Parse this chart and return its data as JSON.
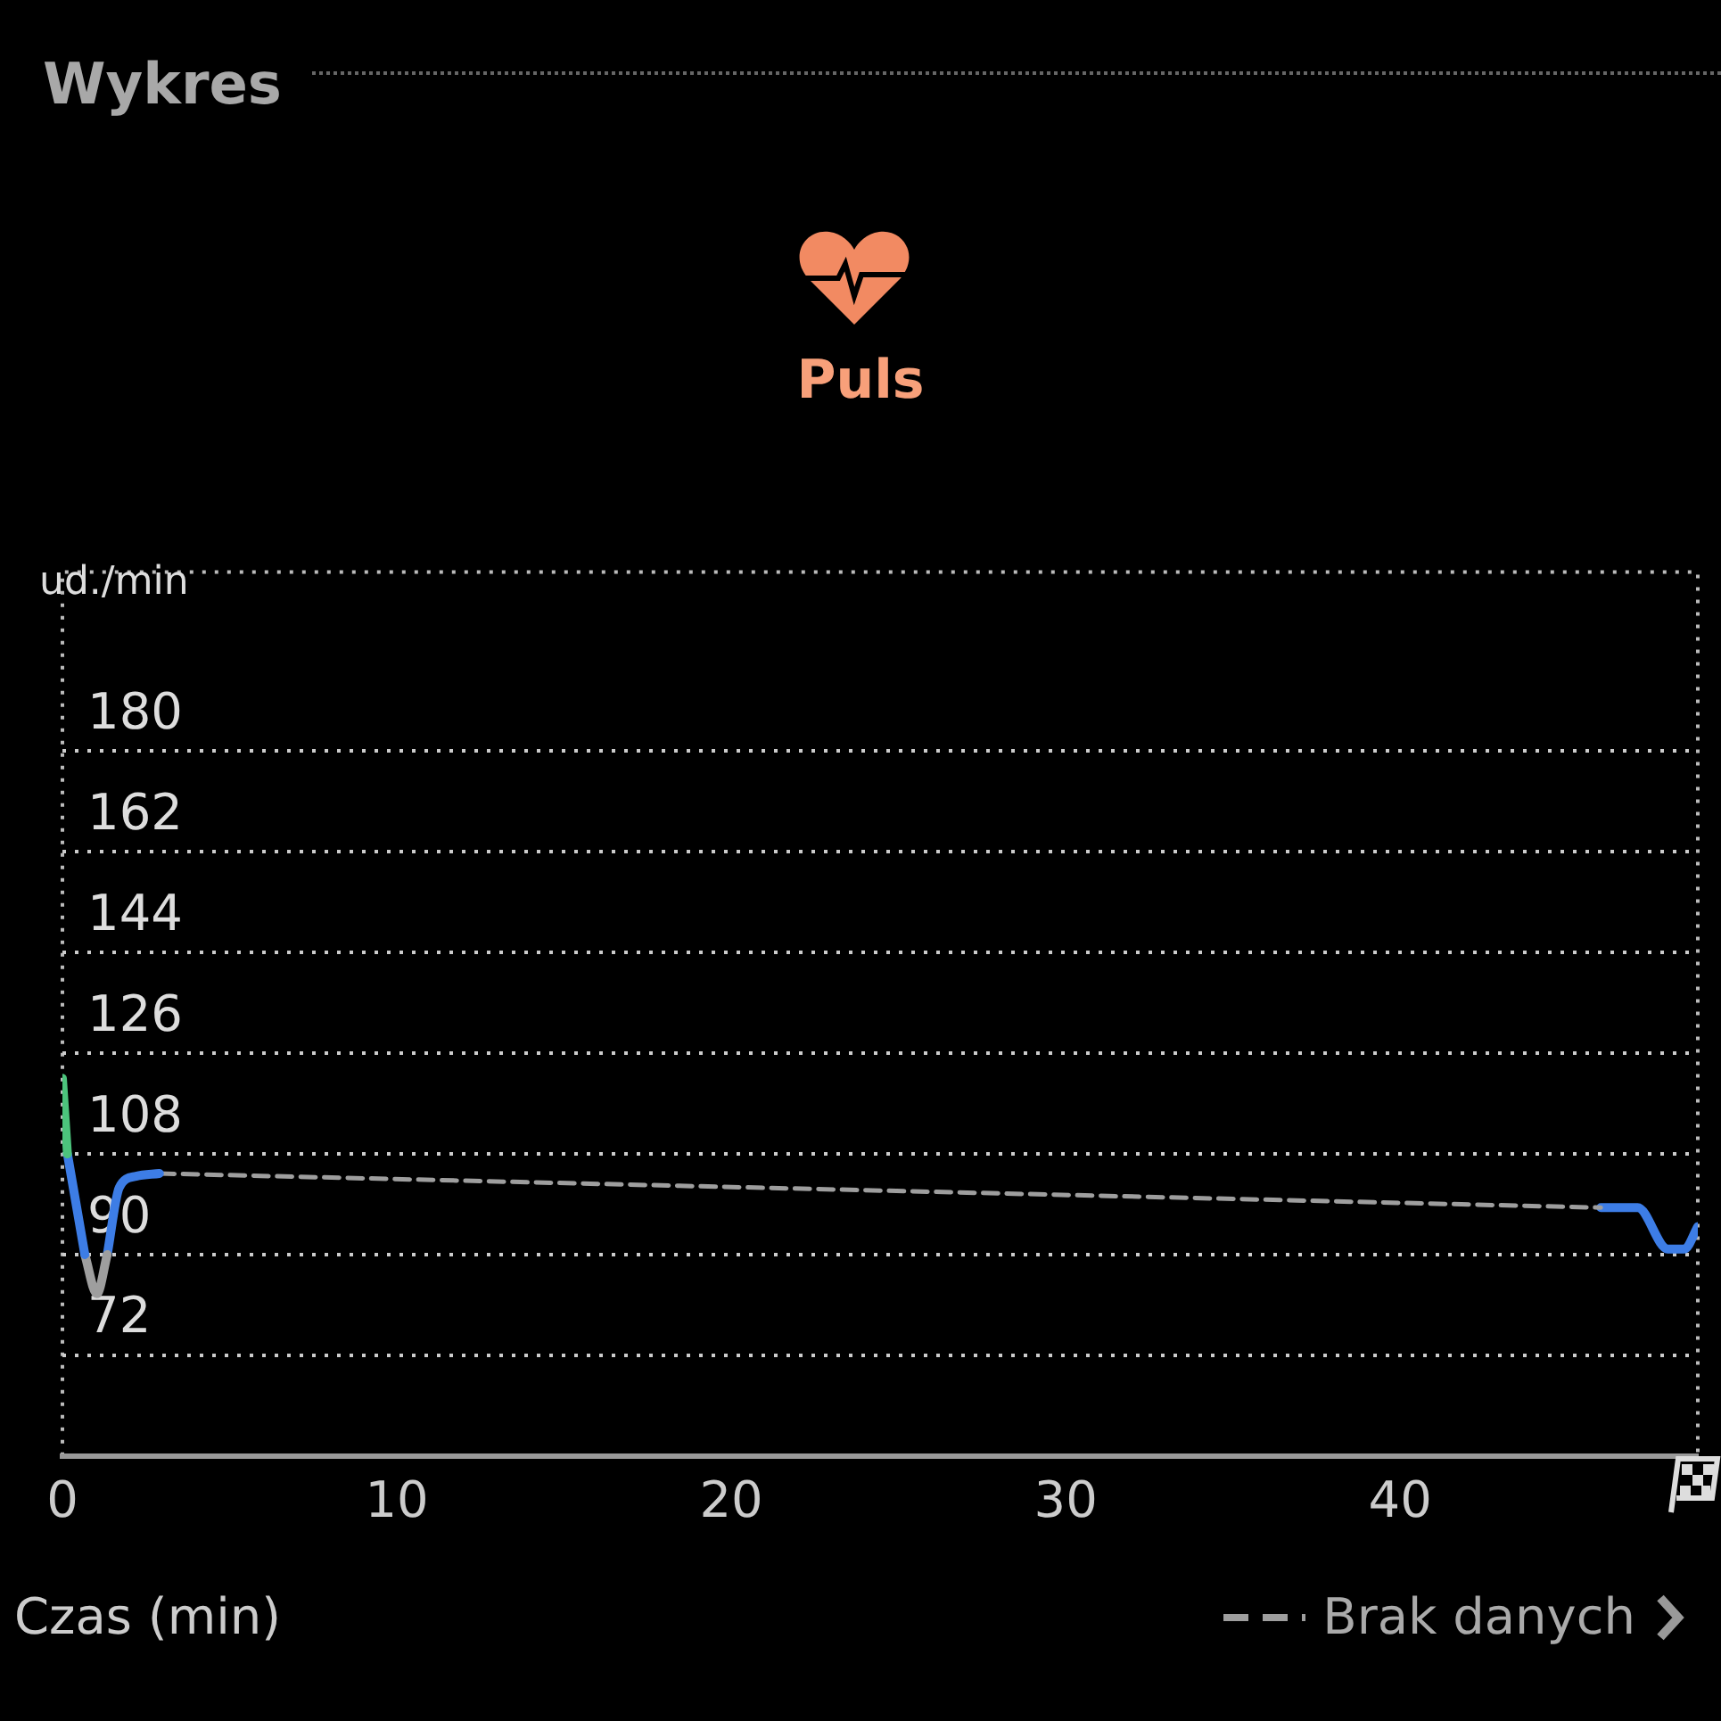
{
  "chart_data": {
    "type": "line",
    "title": "Wykres",
    "subtitle": "Puls",
    "xlabel": "Czas (min)",
    "ylabel": "ud./min",
    "xlim": [
      0,
      48.9
    ],
    "xticks": [
      0,
      10,
      20,
      30,
      40
    ],
    "ylim": [
      54,
      212
    ],
    "yticks": [
      72,
      90,
      108,
      126,
      144,
      162,
      180
    ],
    "grid": "y",
    "legend": "bottom right",
    "marker": "none",
    "series": [
      {
        "color": "#4cc47c",
        "x": [
          0,
          0.15
        ],
        "values": [
          121.5,
          108
        ]
      },
      {
        "color": "#3d7de6",
        "x": [
          0.15,
          0.67
        ],
        "values": [
          108,
          90
        ]
      },
      {
        "color": "#9e9e9e",
        "x": [
          0.67,
          1.03,
          1.34
        ],
        "values": [
          90,
          83,
          90
        ]
      },
      {
        "color": "#3d7de6",
        "x": [
          1.34,
          1.7,
          2.2,
          2.9
        ],
        "values": [
          90,
          102,
          104,
          104.5
        ]
      },
      {
        "name": "Brak danych",
        "color": "#9e9e9e",
        "line_style": "dashed",
        "x": [
          2.9,
          46.0
        ],
        "values": [
          104.5,
          98.4
        ]
      },
      {
        "color": "#3d7de6",
        "x": [
          46.0,
          47.1,
          48.0,
          48.5,
          48.9
        ],
        "values": [
          98.4,
          98.4,
          91,
          91,
          95
        ]
      }
    ]
  }
}
